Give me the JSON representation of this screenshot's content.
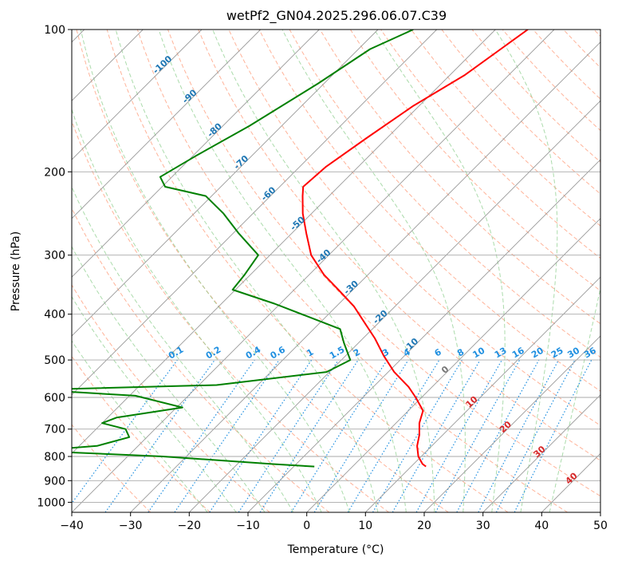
{
  "chart_data": {
    "type": "line",
    "title": "wetPf2_GN04.2025.296.06.07.C39",
    "xlabel": "Temperature (°C)",
    "ylabel": "Pressure (hPa)",
    "xlim": [
      -40,
      50
    ],
    "ylim": [
      1050,
      100
    ],
    "y_scale": "log",
    "x_ticks": [
      "−40",
      "−30",
      "−20",
      "−10",
      "0",
      "10",
      "20",
      "30",
      "40",
      "50"
    ],
    "x_tick_values": [
      -40,
      -30,
      -20,
      -10,
      0,
      10,
      20,
      30,
      40,
      50
    ],
    "y_ticks": [
      "100",
      "200",
      "300",
      "400",
      "500",
      "600",
      "700",
      "800",
      "900",
      "1000"
    ],
    "y_tick_values": [
      100,
      200,
      300,
      400,
      500,
      600,
      700,
      800,
      900,
      1000
    ],
    "grid": true,
    "colors": {
      "temperature": "#ff0000",
      "dewpoint": "#008000",
      "isotherm": "#999999",
      "dry_adiabat": "#ff9977",
      "moist_adiabat": "#88cc88",
      "mixing_ratio": "#1f8fe0",
      "frost_point_label": "#1f77b4",
      "grid": "#aaaaaa",
      "zero_isotherm_label": "#777777",
      "warm_isotherm_label": "#d62728"
    },
    "mixing_ratio_labels": [
      "0.1",
      "0.2",
      "0.4",
      "0.6",
      "1",
      "1.5",
      "2",
      "3",
      "4",
      "6",
      "8",
      "10",
      "13",
      "16",
      "20",
      "25",
      "30",
      "36"
    ],
    "mixing_ratio_values": [
      0.1,
      0.2,
      0.4,
      0.6,
      1,
      1.5,
      2,
      3,
      4,
      6,
      8,
      10,
      13,
      16,
      20,
      25,
      30,
      36
    ],
    "frost_point_labels": [
      {
        "text": "-100",
        "t": -100,
        "p": 120
      },
      {
        "text": "-90",
        "t": -90,
        "p": 140
      },
      {
        "text": "-80",
        "t": -80,
        "p": 165
      },
      {
        "text": "-70",
        "t": -70,
        "p": 193
      },
      {
        "text": "-60",
        "t": -60,
        "p": 225
      },
      {
        "text": "-50",
        "t": -50,
        "p": 260
      },
      {
        "text": "-40",
        "t": -40,
        "p": 305
      },
      {
        "text": "-30",
        "t": -30,
        "p": 355
      },
      {
        "text": "-20",
        "t": -20,
        "p": 410
      },
      {
        "text": "-10",
        "t": -10,
        "p": 470
      }
    ],
    "isotherm_labels": [
      {
        "text": "0",
        "t": 0,
        "p": 530,
        "color_key": "zero_isotherm_label"
      },
      {
        "text": "10",
        "t": 10,
        "p": 620,
        "color_key": "warm_isotherm_label"
      },
      {
        "text": "20",
        "t": 20,
        "p": 700,
        "color_key": "warm_isotherm_label"
      },
      {
        "text": "30",
        "t": 30,
        "p": 790,
        "color_key": "warm_isotherm_label"
      },
      {
        "text": "40",
        "t": 40,
        "p": 900,
        "color_key": "warm_isotherm_label"
      }
    ],
    "series": [
      {
        "name": "temperature",
        "points": [
          [
            -44.5,
            100
          ],
          [
            -47.5,
            125
          ],
          [
            -51.0,
            145
          ],
          [
            -53.5,
            170
          ],
          [
            -55.5,
            195
          ],
          [
            -56.0,
            215
          ],
          [
            -54.5,
            225
          ],
          [
            -51.5,
            245
          ],
          [
            -47.5,
            270
          ],
          [
            -43.0,
            300
          ],
          [
            -37.5,
            330
          ],
          [
            -32.5,
            355
          ],
          [
            -27.0,
            385
          ],
          [
            -22.0,
            420
          ],
          [
            -18.0,
            450
          ],
          [
            -13.5,
            490
          ],
          [
            -9.0,
            530
          ],
          [
            -4.0,
            570
          ],
          [
            -1.0,
            600
          ],
          [
            2.5,
            640
          ],
          [
            4.0,
            680
          ],
          [
            6.0,
            720
          ],
          [
            7.5,
            760
          ],
          [
            9.5,
            800
          ],
          [
            11.5,
            830
          ],
          [
            12.5,
            840
          ]
        ]
      },
      {
        "name": "dewpoint",
        "points": [
          [
            -64.0,
            100
          ],
          [
            -68.0,
            110
          ],
          [
            -71.0,
            130
          ],
          [
            -75.5,
            160
          ],
          [
            -79.5,
            185
          ],
          [
            -82.0,
            205
          ],
          [
            -79.5,
            215
          ],
          [
            -71.0,
            225
          ],
          [
            -65.0,
            245
          ],
          [
            -59.0,
            270
          ],
          [
            -52.0,
            300
          ],
          [
            -51.0,
            330
          ],
          [
            -50.5,
            355
          ],
          [
            -41.0,
            380
          ],
          [
            -25.5,
            430
          ],
          [
            -22.5,
            460
          ],
          [
            -18.5,
            500
          ],
          [
            -20.5,
            530
          ],
          [
            -37.0,
            565
          ],
          [
            -67.0,
            578
          ],
          [
            -49.0,
            595
          ],
          [
            -39.0,
            630
          ],
          [
            -48.5,
            662
          ],
          [
            -50.0,
            680
          ],
          [
            -45.0,
            700
          ],
          [
            -43.0,
            728
          ],
          [
            -47.0,
            760
          ],
          [
            -57.0,
            778
          ],
          [
            -34.0,
            800
          ],
          [
            -14.0,
            830
          ],
          [
            -6.5,
            840
          ]
        ]
      }
    ]
  }
}
